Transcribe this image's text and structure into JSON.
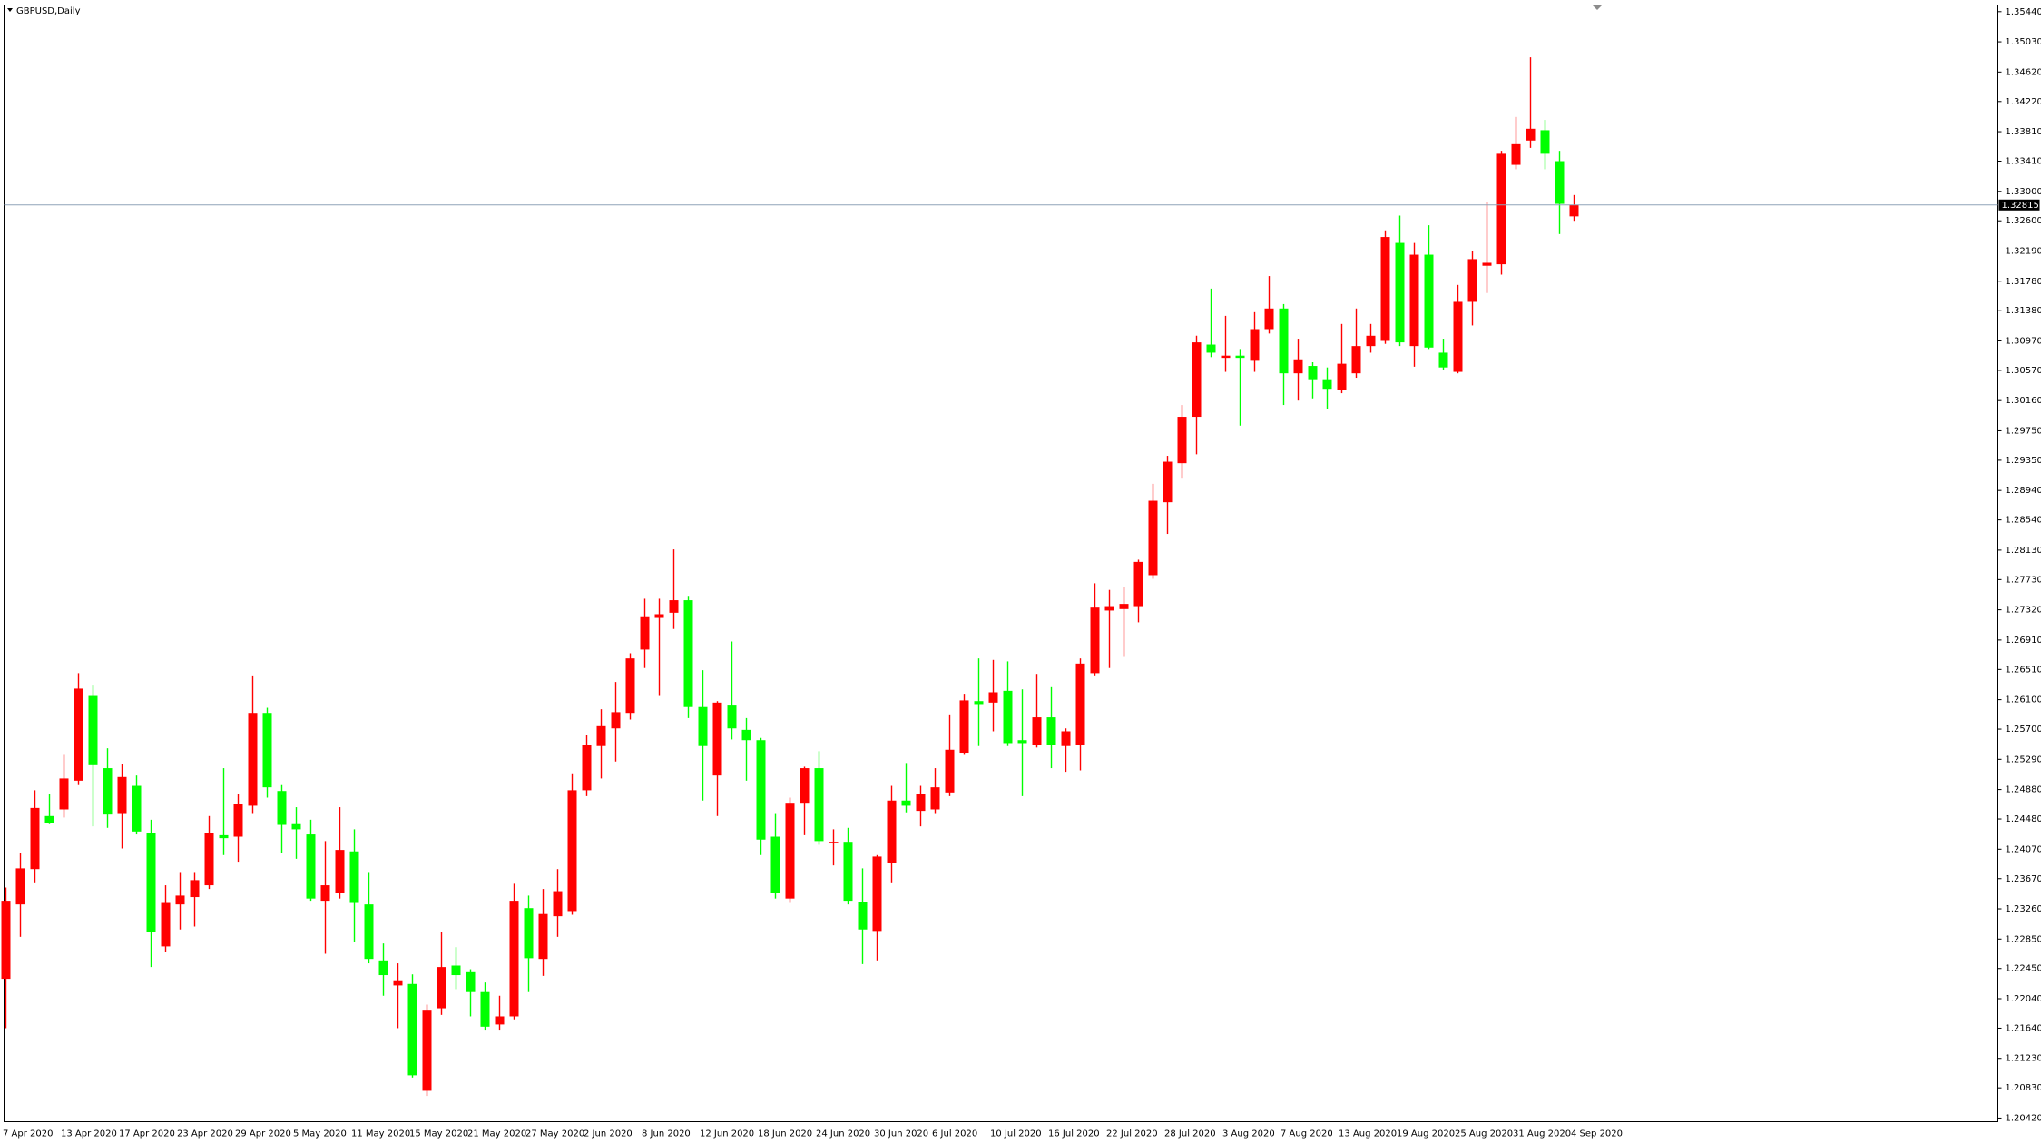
{
  "chart_data": {
    "type": "candlestick",
    "title": "GBPUSD,Daily",
    "up_color": "#ff0000",
    "down_color": "#00ff00",
    "price_line": {
      "value": 1.32815,
      "label": "1.32815",
      "color": "#8fa3b8"
    },
    "ylim": [
      1.2037,
      1.3553
    ],
    "yticks": [
      {
        "value": 1.2042,
        "label": "1.20420"
      },
      {
        "value": 1.2083,
        "label": "1.20830"
      },
      {
        "value": 1.2123,
        "label": "1.21230"
      },
      {
        "value": 1.2164,
        "label": "1.21640"
      },
      {
        "value": 1.2204,
        "label": "1.22040"
      },
      {
        "value": 1.2245,
        "label": "1.22450"
      },
      {
        "value": 1.2285,
        "label": "1.22850"
      },
      {
        "value": 1.2326,
        "label": "1.23260"
      },
      {
        "value": 1.2367,
        "label": "1.23670"
      },
      {
        "value": 1.2407,
        "label": "1.24070"
      },
      {
        "value": 1.2448,
        "label": "1.24480"
      },
      {
        "value": 1.2488,
        "label": "1.24880"
      },
      {
        "value": 1.2529,
        "label": "1.25290"
      },
      {
        "value": 1.257,
        "label": "1.25700"
      },
      {
        "value": 1.261,
        "label": "1.26100"
      },
      {
        "value": 1.2651,
        "label": "1.26510"
      },
      {
        "value": 1.2691,
        "label": "1.26910"
      },
      {
        "value": 1.2732,
        "label": "1.27320"
      },
      {
        "value": 1.2773,
        "label": "1.27730"
      },
      {
        "value": 1.2813,
        "label": "1.28130"
      },
      {
        "value": 1.2854,
        "label": "1.28540"
      },
      {
        "value": 1.2894,
        "label": "1.28940"
      },
      {
        "value": 1.2935,
        "label": "1.29350"
      },
      {
        "value": 1.2975,
        "label": "1.29750"
      },
      {
        "value": 1.3016,
        "label": "1.30160"
      },
      {
        "value": 1.3057,
        "label": "1.30570"
      },
      {
        "value": 1.3097,
        "label": "1.30970"
      },
      {
        "value": 1.3138,
        "label": "1.31380"
      },
      {
        "value": 1.3178,
        "label": "1.31780"
      },
      {
        "value": 1.3219,
        "label": "1.32190"
      },
      {
        "value": 1.326,
        "label": "1.32600"
      },
      {
        "value": 1.33,
        "label": "1.33000"
      },
      {
        "value": 1.3341,
        "label": "1.33410"
      },
      {
        "value": 1.3381,
        "label": "1.33810"
      },
      {
        "value": 1.3422,
        "label": "1.34220"
      },
      {
        "value": 1.3462,
        "label": "1.34620"
      },
      {
        "value": 1.3503,
        "label": "1.35030"
      },
      {
        "value": 1.3544,
        "label": "1.35440"
      }
    ],
    "categories": [
      "7 Apr 2020",
      null,
      null,
      null,
      "13 Apr 2020",
      null,
      null,
      null,
      "17 Apr 2020",
      null,
      null,
      null,
      "23 Apr 2020",
      null,
      null,
      null,
      "29 Apr 2020",
      null,
      null,
      null,
      "5 May 2020",
      null,
      null,
      null,
      "11 May 2020",
      null,
      null,
      null,
      "15 May 2020",
      null,
      null,
      null,
      "21 May 2020",
      null,
      null,
      null,
      "27 May 2020",
      null,
      null,
      null,
      "2 Jun 2020",
      null,
      null,
      null,
      "8 Jun 2020",
      null,
      null,
      null,
      "12 Jun 2020",
      null,
      null,
      null,
      "18 Jun 2020",
      null,
      null,
      null,
      "24 Jun 2020",
      null,
      null,
      null,
      "30 Jun 2020",
      null,
      null,
      null,
      "6 Jul 2020",
      null,
      null,
      null,
      "10 Jul 2020",
      null,
      null,
      null,
      "16 Jul 2020",
      null,
      null,
      null,
      "22 Jul 2020",
      null,
      null,
      null,
      "28 Jul 2020",
      null,
      null,
      null,
      "3 Aug 2020",
      null,
      null,
      null,
      "7 Aug 2020",
      null,
      null,
      null,
      "13 Aug 2020",
      null,
      null,
      null,
      "19 Aug 2020",
      null,
      null,
      null,
      "25 Aug 2020",
      null,
      null,
      null,
      "31 Aug 2020",
      null,
      null,
      null,
      "4 Sep 2020"
    ],
    "open": [
      1.2231,
      1.2332,
      1.238,
      1.2452,
      1.2461,
      1.25,
      1.2615,
      1.2517,
      1.2456,
      1.2493,
      1.2429,
      1.2275,
      1.2332,
      1.2342,
      1.2358,
      1.2426,
      1.2424,
      1.2466,
      1.2592,
      1.2486,
      1.2441,
      1.2427,
      1.2337,
      1.2348,
      1.2404,
      1.2332,
      1.2256,
      1.2222,
      1.2224,
      1.2079,
      1.2191,
      1.2249,
      1.224,
      1.2213,
      1.2169,
      1.218,
      1.2327,
      1.2258,
      1.2316,
      1.2323,
      1.2487,
      1.2547,
      1.2571,
      1.2592,
      1.2678,
      1.2721,
      1.2728,
      1.2745,
      1.26,
      1.2507,
      1.2602,
      1.2569,
      1.2555,
      1.2424,
      1.234,
      1.247,
      1.2517,
      1.2415,
      1.2417,
      1.2335,
      1.2296,
      1.2388,
      1.2473,
      1.2459,
      1.2461,
      1.2484,
      1.2538,
      1.2608,
      1.2606,
      1.2622,
      1.2555,
      1.2549,
      1.2586,
      1.2547,
      1.2549,
      1.2646,
      1.2731,
      1.2733,
      1.2737,
      1.2779,
      1.2878,
      1.2931,
      1.2994,
      1.3092,
      1.3074,
      1.3077,
      1.307,
      1.3113,
      1.3141,
      1.3053,
      1.3063,
      1.3045,
      1.303,
      1.3053,
      1.309,
      1.3097,
      1.323,
      1.309,
      1.3214,
      1.3081,
      1.3055,
      1.315,
      1.3199,
      1.3201,
      1.3336,
      1.3369,
      1.3383,
      1.3341,
      1.3266
    ],
    "high": [
      1.2355,
      1.2402,
      1.2487,
      1.2482,
      1.2535,
      1.2646,
      1.2629,
      1.2544,
      1.2523,
      1.2507,
      1.2447,
      1.2358,
      1.2376,
      1.2376,
      1.2452,
      1.2517,
      1.2482,
      1.2643,
      1.2599,
      1.2494,
      1.2464,
      1.2447,
      1.2418,
      1.2464,
      1.2434,
      1.2376,
      1.2279,
      1.2252,
      1.2237,
      1.2196,
      1.2295,
      1.2274,
      1.2244,
      1.2226,
      1.2208,
      1.236,
      1.2344,
      1.2353,
      1.238,
      1.251,
      1.2562,
      1.2597,
      1.2634,
      1.2673,
      1.2747,
      1.2747,
      1.2814,
      1.2751,
      1.265,
      1.2608,
      1.2689,
      1.2585,
      1.2558,
      1.2456,
      1.2477,
      1.2519,
      1.254,
      1.2434,
      1.2436,
      1.2381,
      1.2399,
      1.2493,
      1.2524,
      1.2493,
      1.2517,
      1.259,
      1.2618,
      1.2666,
      1.2664,
      1.2662,
      1.2624,
      1.2645,
      1.2627,
      1.2571,
      1.2666,
      1.2768,
      1.2759,
      1.2763,
      1.28,
      1.2903,
      1.2941,
      1.301,
      1.3104,
      1.3168,
      1.3131,
      1.3086,
      1.3136,
      1.3185,
      1.3147,
      1.31,
      1.3068,
      1.3061,
      1.312,
      1.3141,
      1.312,
      1.3247,
      1.3267,
      1.323,
      1.3254,
      1.31,
      1.3173,
      1.3219,
      1.3286,
      1.3355,
      1.3401,
      1.3482,
      1.3397,
      1.3355,
      1.3295
    ],
    "low": [
      1.2164,
      1.2288,
      1.2362,
      1.2441,
      1.245,
      1.2494,
      1.2438,
      1.2436,
      1.2408,
      1.2427,
      1.2247,
      1.2268,
      1.2298,
      1.2302,
      1.2353,
      1.2399,
      1.239,
      1.2456,
      1.2477,
      1.2402,
      1.2394,
      1.2337,
      1.2265,
      1.234,
      1.2281,
      1.2252,
      1.2208,
      1.2164,
      1.2097,
      1.2072,
      1.2182,
      1.2217,
      1.218,
      1.2162,
      1.2162,
      1.2176,
      1.2213,
      1.2235,
      1.2288,
      1.2318,
      1.2479,
      1.2503,
      1.2526,
      1.2583,
      1.2653,
      1.2615,
      1.2706,
      1.2585,
      1.2473,
      1.2452,
      1.2556,
      1.25,
      1.2399,
      1.234,
      1.2334,
      1.2426,
      1.2413,
      1.2385,
      1.2332,
      1.2251,
      1.2256,
      1.2362,
      1.2457,
      1.2438,
      1.2456,
      1.2479,
      1.2535,
      1.2547,
      1.2567,
      1.2547,
      1.2479,
      1.2545,
      1.2517,
      1.2512,
      1.2514,
      1.2643,
      1.2653,
      1.2668,
      1.2715,
      1.2774,
      1.2835,
      1.291,
      1.2943,
      1.3075,
      1.3055,
      1.2982,
      1.3055,
      1.3107,
      1.301,
      1.3016,
      1.3019,
      1.3005,
      1.3026,
      1.3047,
      1.3081,
      1.3093,
      1.309,
      1.3062,
      1.3086,
      1.3057,
      1.3053,
      1.3118,
      1.3162,
      1.3187,
      1.333,
      1.3359,
      1.333,
      1.3242,
      1.326
    ],
    "close": [
      1.2337,
      1.2381,
      1.2463,
      1.2443,
      1.2503,
      1.2625,
      1.2521,
      1.2454,
      1.2505,
      1.2431,
      1.2295,
      1.2334,
      1.2344,
      1.2365,
      1.2429,
      1.2422,
      1.2468,
      1.2592,
      1.2491,
      1.244,
      1.2434,
      1.234,
      1.2358,
      1.2406,
      1.2334,
      1.2258,
      1.2236,
      1.2229,
      1.21,
      1.2189,
      1.2247,
      1.2236,
      1.2213,
      1.2166,
      1.218,
      1.2337,
      1.2259,
      1.2319,
      1.235,
      1.2487,
      1.2549,
      1.2574,
      1.2593,
      1.2666,
      1.2722,
      1.2726,
      1.2745,
      1.26,
      1.2547,
      1.2606,
      1.2571,
      1.2555,
      1.242,
      1.2348,
      1.247,
      1.2517,
      1.2418,
      1.2417,
      1.2337,
      1.2298,
      1.2397,
      1.2473,
      1.2466,
      1.2482,
      1.2491,
      1.2542,
      1.2609,
      1.2604,
      1.262,
      1.2551,
      1.2551,
      1.2586,
      1.2549,
      1.2567,
      1.2659,
      1.2735,
      1.2737,
      1.274,
      1.2797,
      1.288,
      1.2933,
      1.2994,
      1.3095,
      1.3081,
      1.3077,
      1.3074,
      1.3113,
      1.3141,
      1.3053,
      1.3072,
      1.3045,
      1.3032,
      1.3066,
      1.309,
      1.3104,
      1.3238,
      1.3095,
      1.3214,
      1.3088,
      1.3061,
      1.315,
      1.3208,
      1.3203,
      1.3351,
      1.3364,
      1.3385,
      1.3351,
      1.3283,
      1.32815
    ]
  }
}
